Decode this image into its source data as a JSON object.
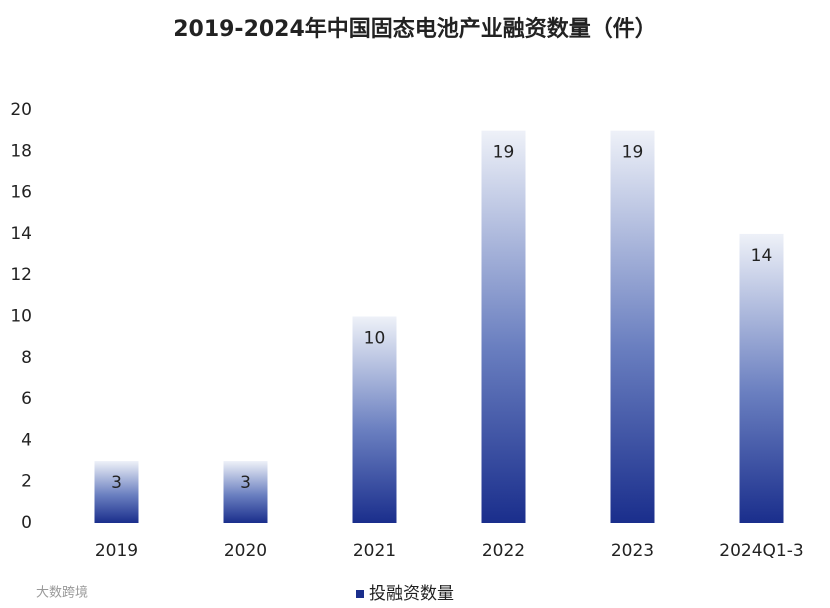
{
  "chart_data": {
    "type": "bar",
    "title": "2019-2024年中国固态电池产业融资数量（件）",
    "categories": [
      "2019",
      "2020",
      "2021",
      "2022",
      "2023",
      "2024Q1-3"
    ],
    "series": [
      {
        "name": "投融资数量",
        "color": "#1a2e8c",
        "values": [
          3,
          3,
          10,
          19,
          19,
          14
        ]
      }
    ],
    "ylim": [
      0,
      20
    ],
    "yticks": [
      0,
      2,
      4,
      6,
      8,
      10,
      12,
      14,
      16,
      18,
      20
    ],
    "grid": false,
    "legend": "bottom",
    "watermark": "大数跨境"
  }
}
